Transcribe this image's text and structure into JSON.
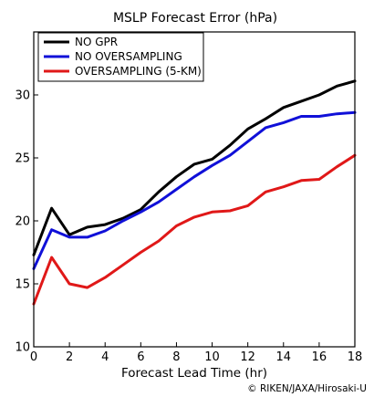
{
  "chart_data": {
    "type": "line",
    "title": "MSLP Forecast Error (hPa)",
    "xlabel": "Forecast Lead Time (hr)",
    "ylabel": "",
    "xlim": [
      0,
      18
    ],
    "ylim": [
      10,
      35
    ],
    "xticks": [
      0,
      2,
      4,
      6,
      8,
      10,
      12,
      14,
      16,
      18
    ],
    "yticks": [
      10,
      15,
      20,
      25,
      30
    ],
    "grid": false,
    "legend_position": "top-left",
    "x": [
      0,
      1,
      2,
      3,
      4,
      5,
      6,
      7,
      8,
      9,
      10,
      11,
      12,
      13,
      14,
      15,
      16,
      17,
      18
    ],
    "series": [
      {
        "name": "NO GPR",
        "color": "#000000",
        "values": [
          17.3,
          21.0,
          18.9,
          19.5,
          19.7,
          20.2,
          20.9,
          22.3,
          23.5,
          24.5,
          24.9,
          26.0,
          27.3,
          28.1,
          29.0,
          29.5,
          30.0,
          30.7,
          31.1
        ]
      },
      {
        "name": "NO OVERSAMPLING",
        "color": "#1010d8",
        "values": [
          16.2,
          19.3,
          18.7,
          18.7,
          19.2,
          20.0,
          20.7,
          21.5,
          22.5,
          23.5,
          24.4,
          25.2,
          26.3,
          27.4,
          27.8,
          28.3,
          28.3,
          28.5,
          28.6
        ]
      },
      {
        "name": "OVERSAMPLING (5-KM)",
        "color": "#e01818",
        "values": [
          13.4,
          17.1,
          15.0,
          14.7,
          15.5,
          16.5,
          17.5,
          18.4,
          19.6,
          20.3,
          20.7,
          20.8,
          21.2,
          22.3,
          22.7,
          23.2,
          23.3,
          24.3,
          25.2
        ]
      }
    ]
  },
  "credit": "© RIKEN/JAXA/Hirosaki-U"
}
